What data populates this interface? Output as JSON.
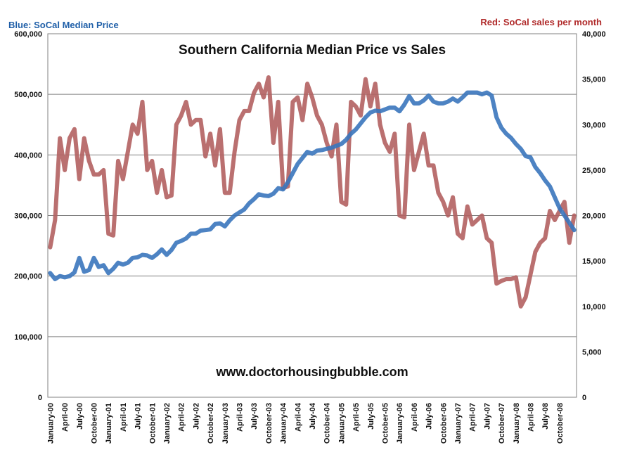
{
  "chart_data": {
    "type": "line",
    "title": "Southern California Median Price vs Sales",
    "left_legend": "Blue:  SoCal Median Price",
    "right_legend": "Red:  SoCal sales per month",
    "watermark": "www.doctorhousingbubble.com",
    "y_left_lim": [
      0,
      600000
    ],
    "y_right_lim": [
      0,
      40000
    ],
    "y_left_ticks": [
      "0",
      "100,000",
      "200,000",
      "300,000",
      "400,000",
      "500,000",
      "600,000"
    ],
    "y_right_ticks": [
      "0",
      "5,000",
      "10,000",
      "15,000",
      "20,000",
      "25,000",
      "30,000",
      "35,000",
      "40,000"
    ],
    "x_tick_labels": [
      "January-00",
      "April-00",
      "July-00",
      "October-00",
      "January-01",
      "April-01",
      "July-01",
      "October-01",
      "January-02",
      "April-02",
      "July-02",
      "October-02",
      "January-03",
      "April-03",
      "July-03",
      "October-03",
      "January-04",
      "April-04",
      "July-04",
      "October-04",
      "January-05",
      "April-05",
      "July-05",
      "October-05",
      "January-06",
      "April-06",
      "July-06",
      "October-06",
      "January-07",
      "April-07",
      "July-07",
      "October-07",
      "January-08",
      "April-08",
      "July-08",
      "October-08"
    ],
    "grid": true,
    "colors": {
      "price": "#3a76bd",
      "sales": "#b36060",
      "grid": "#808080"
    },
    "series": [
      {
        "name": "Blue:  SoCal Median Price",
        "axis": "left",
        "values": [
          205000,
          195000,
          200000,
          198000,
          200000,
          206000,
          230000,
          207000,
          210000,
          230000,
          215000,
          218000,
          205000,
          212000,
          222000,
          219000,
          222000,
          230000,
          231000,
          235000,
          234000,
          230000,
          236000,
          244000,
          235000,
          243000,
          255000,
          258000,
          262000,
          270000,
          270000,
          275000,
          276000,
          277000,
          286000,
          287000,
          282000,
          292000,
          300000,
          305000,
          310000,
          320000,
          327000,
          335000,
          333000,
          332000,
          336000,
          345000,
          343000,
          355000,
          370000,
          385000,
          395000,
          405000,
          402000,
          407000,
          408000,
          410000,
          412000,
          415000,
          418000,
          425000,
          435000,
          442000,
          452000,
          462000,
          470000,
          473000,
          472000,
          475000,
          478000,
          478000,
          472000,
          483000,
          497000,
          485000,
          485000,
          490000,
          498000,
          488000,
          485000,
          485000,
          488000,
          493000,
          488000,
          495000,
          503000,
          503000,
          503000,
          500000,
          503000,
          498000,
          462000,
          445000,
          435000,
          428000,
          418000,
          410000,
          398000,
          396000,
          380000,
          370000,
          358000,
          348000,
          330000,
          312000,
          300000,
          288000,
          276000
        ],
        "values_note_x": "monthly from January-00 to January-09"
      },
      {
        "name": "Red:  SoCal sales per month",
        "axis": "right",
        "values": [
          16500,
          19500,
          28500,
          25000,
          28500,
          29500,
          24000,
          28500,
          26000,
          24500,
          24500,
          25000,
          18000,
          17800,
          26000,
          24000,
          27000,
          30000,
          29000,
          32500,
          25000,
          26000,
          22500,
          25000,
          22000,
          22200,
          30000,
          31000,
          32500,
          30000,
          30500,
          30500,
          26500,
          29000,
          25500,
          29500,
          22500,
          22500,
          27000,
          30500,
          31500,
          31500,
          33500,
          34500,
          33000,
          35200,
          28000,
          32500,
          23000,
          23200,
          32500,
          33000,
          30500,
          34500,
          33000,
          31000,
          30000,
          28000,
          26500,
          30000,
          21500,
          21200,
          32500,
          32000,
          31000,
          35000,
          32000,
          34500,
          30000,
          28000,
          27000,
          29000,
          20000,
          19800,
          30000,
          25000,
          27000,
          29000,
          25500,
          25500,
          22500,
          21500,
          20000,
          22000,
          18000,
          17500,
          21000,
          19000,
          19500,
          20000,
          17500,
          17000,
          12500,
          12800,
          13000,
          13000,
          13200,
          10000,
          11000,
          13500,
          16000,
          17000,
          17500,
          20500,
          19500,
          20500,
          21500,
          17000,
          20000
        ]
      }
    ]
  }
}
